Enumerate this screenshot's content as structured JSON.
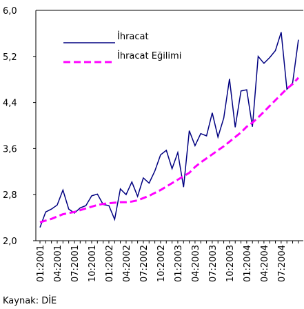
{
  "chart_data": {
    "type": "line",
    "categories": [
      "01:2001",
      null,
      null,
      "04:2001",
      null,
      null,
      "07:2001",
      null,
      null,
      "10:2001",
      null,
      null,
      "01:2002",
      null,
      null,
      "04:2002",
      null,
      null,
      "07:2002",
      null,
      null,
      "10:2002",
      null,
      null,
      "01:2003",
      null,
      null,
      "04:2003",
      null,
      null,
      "07:2003",
      null,
      null,
      "10:2003",
      null,
      null,
      "01:2004",
      null,
      null,
      "04:2004",
      null,
      null,
      "07:2004",
      null,
      null,
      null
    ],
    "series": [
      {
        "name": "İhracat",
        "color": "#000080",
        "dashed": false,
        "values": [
          2.23,
          2.5,
          2.55,
          2.62,
          2.88,
          2.55,
          2.48,
          2.57,
          2.61,
          2.78,
          2.81,
          2.63,
          2.61,
          2.37,
          2.9,
          2.8,
          3.02,
          2.77,
          3.09,
          3.0,
          3.21,
          3.49,
          3.57,
          3.25,
          3.53,
          2.93,
          3.91,
          3.65,
          3.86,
          3.82,
          4.22,
          3.8,
          4.13,
          4.81,
          3.97,
          4.6,
          4.62,
          3.98,
          5.2,
          5.08,
          5.18,
          5.3,
          5.62,
          4.63,
          4.74,
          5.49
        ]
      },
      {
        "name": "İhracat Eğilimi",
        "color": "#ff00ff",
        "dashed": true,
        "values": [
          2.32,
          2.35,
          2.38,
          2.42,
          2.46,
          2.48,
          2.5,
          2.53,
          2.56,
          2.59,
          2.62,
          2.64,
          2.65,
          2.66,
          2.67,
          2.67,
          2.68,
          2.7,
          2.74,
          2.78,
          2.83,
          2.88,
          2.94,
          3.0,
          3.06,
          3.12,
          3.18,
          3.28,
          3.36,
          3.43,
          3.5,
          3.57,
          3.64,
          3.72,
          3.8,
          3.88,
          3.98,
          4.05,
          4.14,
          4.24,
          4.34,
          4.44,
          4.54,
          4.64,
          4.72,
          4.83
        ]
      }
    ],
    "ylim": [
      2.0,
      6.0
    ],
    "yticks": [
      {
        "value": 2.0,
        "label": "2,0"
      },
      {
        "value": 2.8,
        "label": "2,8"
      },
      {
        "value": 3.6,
        "label": "3,6"
      },
      {
        "value": 4.4,
        "label": "4,4"
      },
      {
        "value": 5.2,
        "label": "5,2"
      },
      {
        "value": 6.0,
        "label": "6,0"
      }
    ],
    "legend": "upper left",
    "source": "Kaynak: DİE"
  }
}
